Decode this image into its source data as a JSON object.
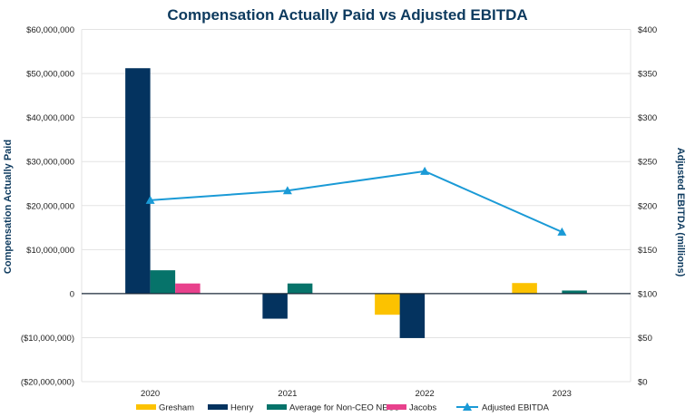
{
  "chart_data": {
    "type": "bar",
    "title": "Compensation Actually Paid vs Adjusted EBITDA",
    "categories": [
      "2020",
      "2021",
      "2022",
      "2023"
    ],
    "ylabel": "Compensation Actually Paid",
    "y2label": "Adjusted EBITDA (millions)",
    "ylim": [
      -20000000,
      60000000
    ],
    "y2lim": [
      0,
      400
    ],
    "yticks": [
      "($20,000,000)",
      "($10,000,000)",
      "0",
      "$10,000,000",
      "$20,000,000",
      "$30,000,000",
      "$40,000,000",
      "$50,000,000",
      "$60,000,000"
    ],
    "y2ticks": [
      "$0",
      "$50",
      "$100",
      "$150",
      "$200",
      "$250",
      "$300",
      "$350",
      "$400"
    ],
    "grid": true,
    "legend": "bottom",
    "series": [
      {
        "name": "Gresham",
        "kind": "bar",
        "color": "#fcc200",
        "values": [
          null,
          null,
          -4800000,
          2400000
        ]
      },
      {
        "name": "Henry",
        "kind": "bar",
        "color": "#04335f",
        "values": [
          51200000,
          -5700000,
          -10100000,
          null
        ]
      },
      {
        "name": "Average for Non-CEO NEOs",
        "kind": "bar",
        "color": "#06736a",
        "values": [
          5300000,
          2300000,
          null,
          700000
        ]
      },
      {
        "name": "Jacobs",
        "kind": "bar",
        "color": "#e8418c",
        "values": [
          2300000,
          null,
          null,
          null
        ]
      },
      {
        "name": "Adjusted EBITDA",
        "kind": "line",
        "axis": "right",
        "marker": "triangle",
        "color": "#1a9ad6",
        "values": [
          206,
          217,
          239,
          170
        ]
      }
    ]
  }
}
